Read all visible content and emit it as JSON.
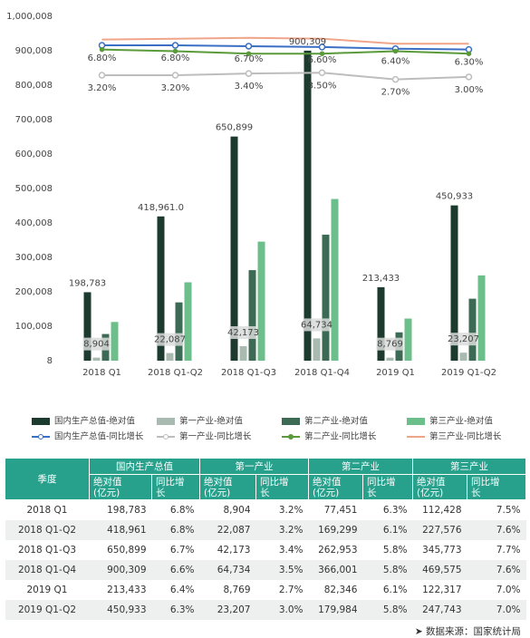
{
  "chart_data": {
    "type": "bar",
    "categories": [
      "2018 Q1",
      "2018 Q1-Q2",
      "2018 Q1-Q3",
      "2018 Q1-Q4",
      "2019 Q1",
      "2019 Q1-Q2"
    ],
    "ylim": [
      8,
      1000008
    ],
    "yticks": [
      8,
      {
        "value": 100008,
        "label": "100,008"
      },
      {
        "value": 200008,
        "label": "200,008"
      },
      {
        "value": 300008,
        "label": "300,008"
      },
      {
        "value": 400008,
        "label": "400,008"
      },
      {
        "value": 500008,
        "label": "500,008"
      },
      {
        "value": 600008,
        "label": "600,008"
      },
      {
        "value": 700008,
        "label": "700,008"
      },
      {
        "value": 800008,
        "label": "800,008"
      },
      {
        "value": 900008,
        "label": "900,008"
      },
      {
        "value": 1000008,
        "label": "1,000,008"
      }
    ],
    "y2lim": [
      -31.2,
      10.3
    ],
    "grid": false,
    "series": [
      {
        "name": "国内生产总值-绝对值",
        "type": "bar",
        "color": "#1d3a2e",
        "values": [
          198783,
          418961,
          650899,
          900309,
          213433,
          450933
        ],
        "value_labels": [
          "198,783",
          "418,961.0",
          "650,899",
          "900,309",
          "213,433",
          "450,933"
        ]
      },
      {
        "name": "第一产业-绝对值",
        "type": "bar",
        "color": "#a9bbb0",
        "values": [
          8904,
          22087,
          42173,
          64734,
          8769,
          23207
        ],
        "value_labels": [
          "8,904",
          "22,087",
          "42,173",
          "64,734",
          "8,769",
          "23,207"
        ]
      },
      {
        "name": "第二产业-绝对值",
        "type": "bar",
        "color": "#3d6a55",
        "values": [
          77451,
          169299,
          262953,
          366001,
          82346,
          179984
        ]
      },
      {
        "name": "第三产业-绝对值",
        "type": "bar",
        "color": "#6cbf8a",
        "values": [
          112428,
          227576,
          345773,
          469575,
          122317,
          247743
        ]
      },
      {
        "name": "国内生产总值-同比增长",
        "type": "line",
        "axis": "y2",
        "color": "#3a6fc4",
        "values": [
          6.8,
          6.8,
          6.7,
          6.6,
          6.4,
          6.3
        ],
        "value_labels": [
          "6.80%",
          "6.80%",
          "6.70%",
          "6.60%",
          "6.40%",
          "6.30%"
        ]
      },
      {
        "name": "第一产业-同比增长",
        "type": "line",
        "axis": "y2",
        "color": "#bdbdbd",
        "values": [
          3.2,
          3.2,
          3.4,
          3.5,
          2.7,
          3.0
        ],
        "value_labels": [
          "3.20%",
          "3.20%",
          "3.40%",
          "3.50%",
          "2.70%",
          "3.00%"
        ]
      },
      {
        "name": "第二产业-同比增长",
        "type": "line",
        "axis": "y2",
        "color": "#5a9a3a",
        "values": [
          6.3,
          6.1,
          5.8,
          5.8,
          6.1,
          5.8
        ]
      },
      {
        "name": "第三产业-同比增长",
        "type": "line",
        "axis": "y2",
        "color": "#f0a58a",
        "values": [
          7.5,
          7.6,
          7.7,
          7.6,
          7.0,
          7.0
        ]
      }
    ]
  },
  "table": {
    "header": [
      "季度",
      "国内生产总值",
      "第一产业",
      "第二产业",
      "第三产业"
    ],
    "subheader": [
      "绝对值(亿元)",
      "同比增长",
      "绝对值(亿元)",
      "同比增长",
      "绝对值(亿元)",
      "同比增长",
      "绝对值(亿元)",
      "同比增长"
    ],
    "rows": [
      [
        "2018 Q1",
        "198,783",
        "6.8%",
        "8,904",
        "3.2%",
        "77,451",
        "6.3%",
        "112,428",
        "7.5%"
      ],
      [
        "2018 Q1-Q2",
        "418,961",
        "6.8%",
        "22,087",
        "3.2%",
        "169,299",
        "6.1%",
        "227,576",
        "7.6%"
      ],
      [
        "2018 Q1-Q3",
        "650,899",
        "6.7%",
        "42,173",
        "3.4%",
        "262,953",
        "5.8%",
        "345,773",
        "7.7%"
      ],
      [
        "2018 Q1-Q4",
        "900,309",
        "6.6%",
        "64,734",
        "3.5%",
        "366,001",
        "5.8%",
        "469,575",
        "7.6%"
      ],
      [
        "2019 Q1",
        "213,433",
        "6.4%",
        "8,769",
        "2.7%",
        "82,346",
        "6.1%",
        "122,317",
        "7.0%"
      ],
      [
        "2019 Q1-Q2",
        "450,933",
        "6.3%",
        "23,207",
        "3.0%",
        "179,984",
        "5.8%",
        "247,743",
        "7.0%"
      ]
    ]
  },
  "source": "数据来源：国家统计局"
}
